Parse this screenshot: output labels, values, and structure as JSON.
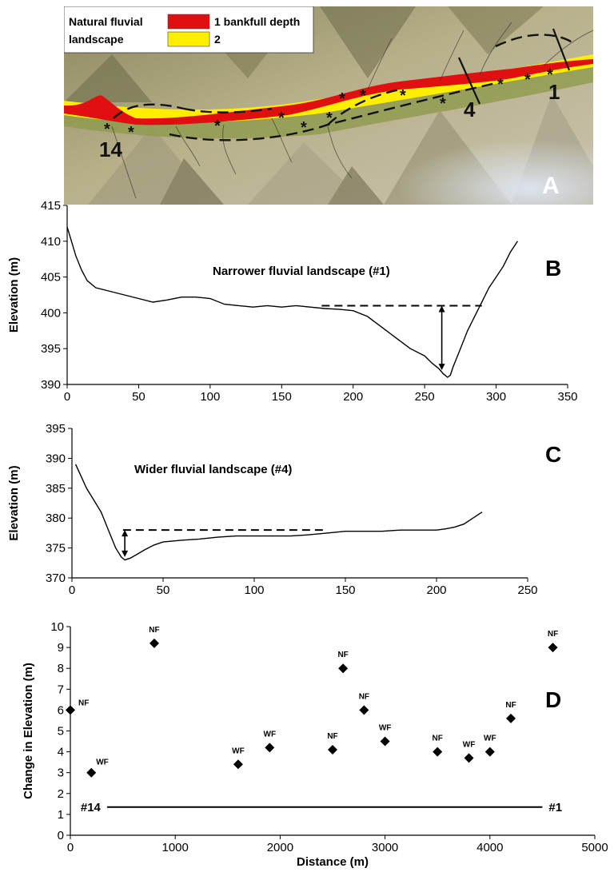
{
  "panel_a": {
    "legend_title": "Natural fluvial landscape",
    "legend_items": [
      {
        "label": "1 bankfull depth",
        "color": "#e01010"
      },
      {
        "label": "2",
        "color": "#ffee00"
      }
    ],
    "section_labels": [
      "14",
      "4",
      "1"
    ],
    "panel_label": "A"
  },
  "chart_data": [
    {
      "type": "line",
      "panel_label": "B",
      "annotation": "Narrower fluvial landscape (#1)",
      "xlim": [
        0,
        350
      ],
      "ylim": [
        390,
        415
      ],
      "xticks": [
        0,
        50,
        100,
        150,
        200,
        250,
        300,
        350
      ],
      "yticks": [
        390,
        395,
        400,
        405,
        410,
        415
      ],
      "xlabel": "",
      "ylabel": "Elevation (m)",
      "series": [
        {
          "x": [
            0,
            3,
            6,
            10,
            14,
            20,
            30,
            40,
            50,
            60,
            70,
            80,
            90,
            100,
            110,
            120,
            130,
            140,
            150,
            160,
            170,
            180,
            190,
            200,
            210,
            220,
            230,
            240,
            250,
            255,
            260,
            263,
            266,
            268,
            270,
            275,
            280,
            285,
            290,
            295,
            300,
            305,
            310,
            315
          ],
          "y": [
            412,
            410,
            408,
            406,
            404.5,
            403.5,
            403,
            402.5,
            402,
            401.5,
            401.8,
            402.2,
            402.2,
            402,
            401.2,
            401,
            400.8,
            401,
            400.8,
            401,
            400.8,
            400.6,
            400.5,
            400.3,
            399.5,
            398,
            396.5,
            395,
            394,
            393,
            392.2,
            391.5,
            391,
            391.3,
            392.5,
            395,
            397.5,
            399.5,
            401.5,
            403.5,
            405,
            406.5,
            408.5,
            410
          ]
        }
      ],
      "bankfull_line": {
        "x": [
          178,
          290
        ],
        "y": 401
      },
      "depth_arrow": {
        "x": 262,
        "y": [
          392,
          401
        ]
      }
    },
    {
      "type": "line",
      "panel_label": "C",
      "annotation": "Wider fluvial landscape (#4)",
      "xlim": [
        0,
        250
      ],
      "ylim": [
        370,
        395
      ],
      "xticks": [
        0,
        50,
        100,
        150,
        200,
        250
      ],
      "yticks": [
        370,
        375,
        380,
        385,
        390,
        395
      ],
      "xlabel": "",
      "ylabel": "Elevation (m)",
      "series": [
        {
          "x": [
            2,
            5,
            8,
            12,
            16,
            20,
            24,
            27,
            29,
            32,
            36,
            40,
            45,
            50,
            60,
            70,
            80,
            90,
            100,
            110,
            120,
            130,
            140,
            150,
            160,
            170,
            180,
            190,
            200,
            205,
            210,
            215,
            220,
            225
          ],
          "y": [
            389,
            387,
            385,
            383,
            381,
            378,
            375,
            373.5,
            373,
            373.3,
            374,
            374.7,
            375.5,
            376,
            376.3,
            376.5,
            376.8,
            377,
            377,
            377,
            377,
            377.2,
            377.5,
            377.8,
            377.8,
            377.8,
            378,
            378,
            378,
            378.2,
            378.5,
            379,
            380,
            381
          ]
        }
      ],
      "bankfull_line": {
        "x": [
          28,
          140
        ],
        "y": 378
      },
      "depth_arrow": {
        "x": 29,
        "y": [
          373.5,
          378
        ]
      }
    },
    {
      "type": "scatter",
      "panel_label": "D",
      "xlim": [
        0,
        5000
      ],
      "ylim": [
        0,
        10
      ],
      "xticks": [
        0,
        1000,
        2000,
        3000,
        4000,
        5000
      ],
      "yticks": [
        0,
        1,
        2,
        3,
        4,
        5,
        6,
        7,
        8,
        9,
        10
      ],
      "xlabel": "Distance (m)",
      "ylabel": "Change in Elevation (m)",
      "points": [
        {
          "x": 0,
          "y": 6.0,
          "label": "NF"
        },
        {
          "x": 200,
          "y": 3.0,
          "label": "WF"
        },
        {
          "x": 800,
          "y": 9.2,
          "label": "NF"
        },
        {
          "x": 1600,
          "y": 3.4,
          "label": "WF"
        },
        {
          "x": 1900,
          "y": 4.2,
          "label": "WF"
        },
        {
          "x": 2500,
          "y": 4.1,
          "label": "NF"
        },
        {
          "x": 2600,
          "y": 8.0,
          "label": "NF"
        },
        {
          "x": 2800,
          "y": 6.0,
          "label": "NF"
        },
        {
          "x": 3000,
          "y": 4.5,
          "label": "WF"
        },
        {
          "x": 3500,
          "y": 4.0,
          "label": "NF"
        },
        {
          "x": 3800,
          "y": 3.7,
          "label": "WF"
        },
        {
          "x": 4000,
          "y": 4.0,
          "label": "WF"
        },
        {
          "x": 4200,
          "y": 5.6,
          "label": "NF"
        },
        {
          "x": 4600,
          "y": 9.0,
          "label": "NF"
        }
      ],
      "reference_line": {
        "x": [
          350,
          4500
        ],
        "y": 1.35,
        "start_label": "#14",
        "end_label": "#1"
      }
    }
  ]
}
